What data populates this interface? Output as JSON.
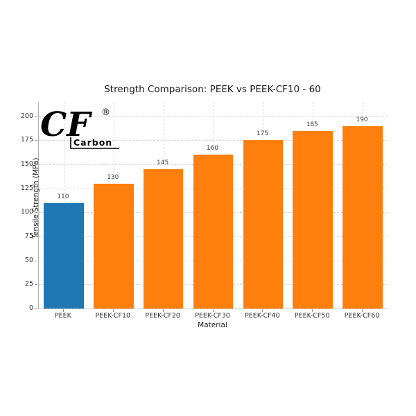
{
  "page": {
    "background": "#ffffff"
  },
  "chart_data": {
    "type": "bar",
    "title": "Strength Comparison: PEEK vs PEEK-CF10 - 60",
    "xlabel": "Material",
    "ylabel": "Tensile Strength (MPa)",
    "categories": [
      "PEEK",
      "PEEK-CF10",
      "PEEK-CF20",
      "PEEK-CF30",
      "PEEK-CF40",
      "PEEK-CF50",
      "PEEK-CF60"
    ],
    "values": [
      110,
      130,
      145,
      160,
      175,
      185,
      190
    ],
    "value_labels": [
      "110",
      "130",
      "145",
      "160",
      "175",
      "185",
      "190"
    ],
    "bar_colors": [
      "#1f77b4",
      "#ff7f0e",
      "#ff7f0e",
      "#ff7f0e",
      "#ff7f0e",
      "#ff7f0e",
      "#ff7f0e"
    ],
    "yticks": [
      0,
      25,
      50,
      75,
      100,
      125,
      150,
      175,
      200
    ],
    "ylim": [
      0,
      215
    ],
    "grid": "dashed horizontal and vertical",
    "legend": "none"
  },
  "logo": {
    "main": "CF",
    "reg": "®",
    "sub": "Carbon"
  }
}
